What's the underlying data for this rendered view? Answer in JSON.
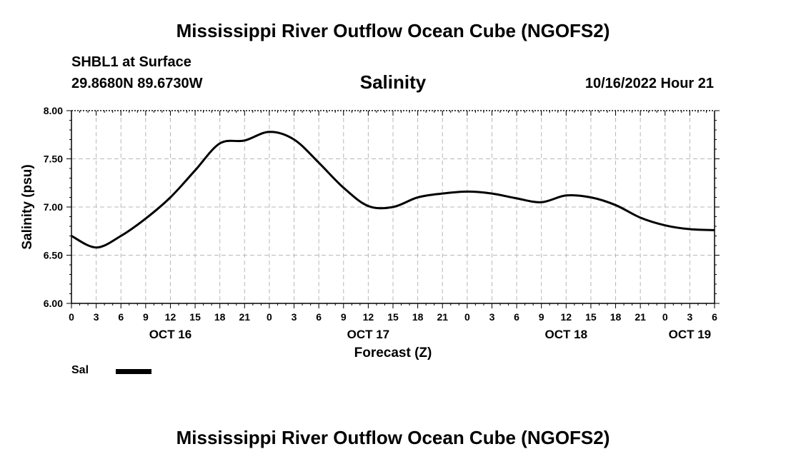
{
  "header": {
    "main_title": "Mississippi River Outflow Ocean Cube (NGOFS2)",
    "station": "SHBL1 at Surface",
    "coordinates": "29.8680N  89.6730W",
    "timestamp": "10/16/2022 Hour 21",
    "bottom_title": "Mississippi River Outflow Ocean Cube (NGOFS2)"
  },
  "legend": {
    "label": "Sal",
    "color": "#000000"
  },
  "chart_data": {
    "type": "line",
    "title": "Salinity",
    "xlabel": "Forecast (Z)",
    "ylabel": "Salinity (psu)",
    "ylim": [
      6.0,
      8.0
    ],
    "yticks": [
      "6.00",
      "6.50",
      "7.00",
      "7.50",
      "8.00"
    ],
    "xlim": [
      "10/16/2022 00Z",
      "10/19/2022 06Z"
    ],
    "x_tick_labels": [
      "0",
      "3",
      "6",
      "9",
      "12",
      "15",
      "18",
      "21",
      "0",
      "3",
      "6",
      "9",
      "12",
      "15",
      "18",
      "21",
      "0",
      "3",
      "6",
      "9",
      "12",
      "15",
      "18",
      "21",
      "0",
      "3",
      "6"
    ],
    "date_labels": [
      {
        "label": "OCT 16",
        "x": "10/16/2022 12Z"
      },
      {
        "label": "OCT 17",
        "x": "10/17/2022 12Z"
      },
      {
        "label": "OCT 18",
        "x": "10/18/2022 12Z"
      },
      {
        "label": "OCT 19",
        "x": "10/19/2022 03Z"
      }
    ],
    "grid": true,
    "legend_position": "bottom-left",
    "series": [
      {
        "name": "Sal",
        "x": [
          "10/16/2022 00Z",
          "10/16/2022 03Z",
          "10/16/2022 06Z",
          "10/16/2022 09Z",
          "10/16/2022 12Z",
          "10/16/2022 15Z",
          "10/16/2022 18Z",
          "10/16/2022 21Z",
          "10/17/2022 00Z",
          "10/17/2022 03Z",
          "10/17/2022 06Z",
          "10/17/2022 09Z",
          "10/17/2022 12Z",
          "10/17/2022 15Z",
          "10/17/2022 18Z",
          "10/17/2022 21Z",
          "10/18/2022 00Z",
          "10/18/2022 03Z",
          "10/18/2022 06Z",
          "10/18/2022 09Z",
          "10/18/2022 12Z",
          "10/18/2022 15Z",
          "10/18/2022 18Z",
          "10/18/2022 21Z",
          "10/19/2022 00Z",
          "10/19/2022 03Z",
          "10/19/2022 06Z"
        ],
        "values": [
          6.7,
          6.58,
          6.7,
          6.88,
          7.1,
          7.38,
          7.66,
          7.69,
          7.78,
          7.7,
          7.46,
          7.2,
          7.01,
          7.0,
          7.1,
          7.14,
          7.16,
          7.14,
          7.09,
          7.05,
          7.12,
          7.1,
          7.02,
          6.89,
          6.81,
          6.77,
          6.76
        ]
      }
    ]
  }
}
